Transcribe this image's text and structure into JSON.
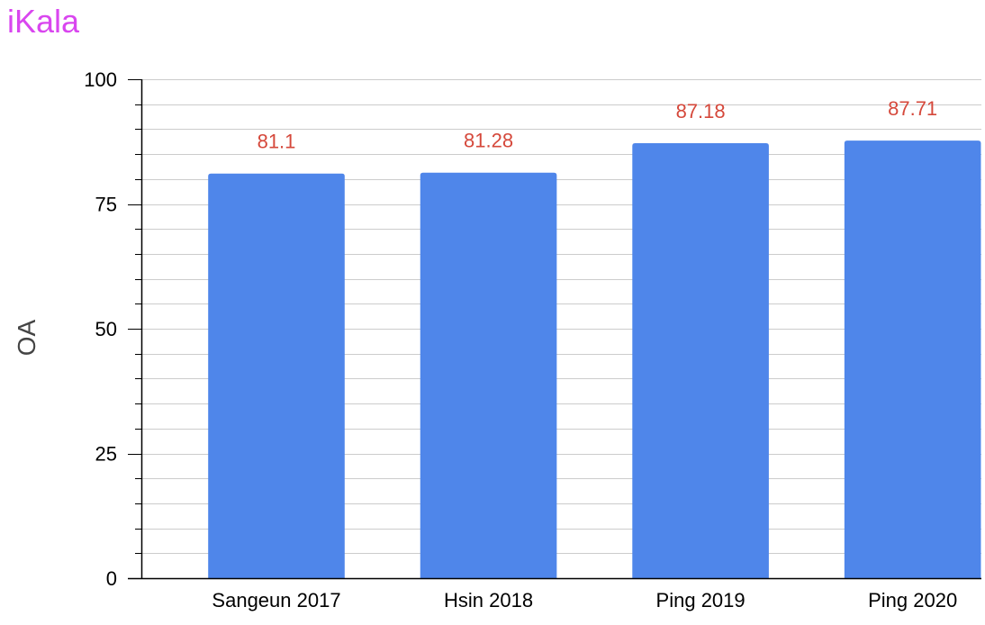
{
  "chart_data": {
    "type": "bar",
    "title": "iKala",
    "xlabel": "",
    "ylabel": "OA",
    "categories": [
      "Sangeun 2017",
      "Hsin 2018",
      "Ping 2019",
      "Ping 2020"
    ],
    "series": [
      {
        "values": [
          81.1,
          81.28,
          87.18,
          87.71
        ],
        "data_labels": [
          "81.1",
          "81.28",
          "87.18",
          "87.71"
        ]
      }
    ],
    "ylim": [
      0,
      100
    ],
    "yticks": [
      0,
      25,
      50,
      75,
      100
    ],
    "ytick_labels": [
      "0",
      "25",
      "50",
      "75",
      "100"
    ],
    "minor_ticks_per_major": 5,
    "grid": true,
    "legend": "none",
    "colors": {
      "bar": "#4f86ea",
      "data_label": "#d5483b",
      "title": "#d946ef",
      "grid": "#cccccc",
      "axis": "#000000",
      "tick_label": "#000000",
      "axis_label": "#444444"
    }
  }
}
